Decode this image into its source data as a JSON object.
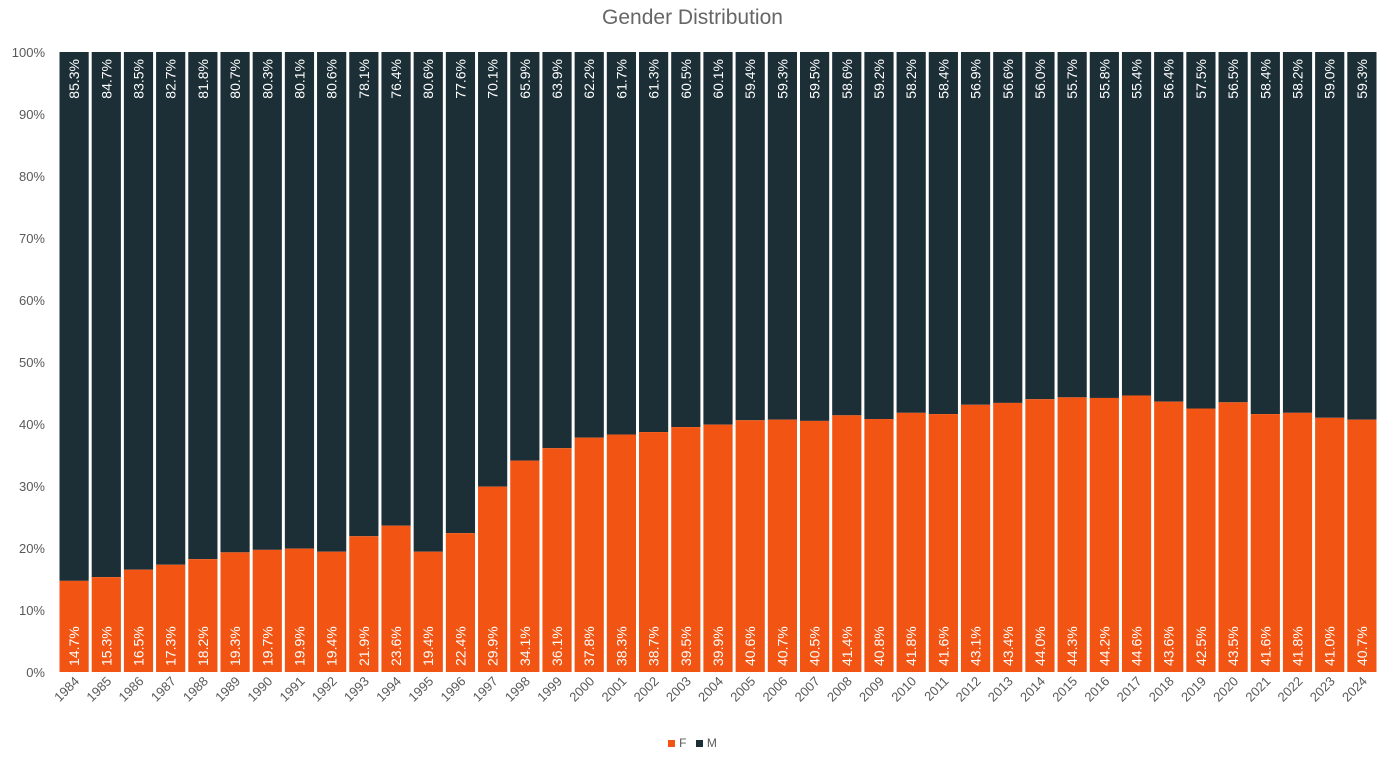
{
  "chart_data": {
    "type": "bar",
    "stacked": true,
    "title": "Gender Distribution",
    "xlabel": "",
    "ylabel": "",
    "ylim": [
      0,
      100
    ],
    "y_tick_labels": [
      "0%",
      "10%",
      "20%",
      "30%",
      "40%",
      "50%",
      "60%",
      "70%",
      "80%",
      "90%",
      "100%"
    ],
    "categories": [
      "1984",
      "1985",
      "1986",
      "1987",
      "1988",
      "1989",
      "1990",
      "1991",
      "1992",
      "1993",
      "1994",
      "1995",
      "1996",
      "1997",
      "1998",
      "1999",
      "2000",
      "2001",
      "2002",
      "2003",
      "2004",
      "2005",
      "2006",
      "2007",
      "2008",
      "2009",
      "2010",
      "2011",
      "2012",
      "2013",
      "2014",
      "2015",
      "2016",
      "2017",
      "2018",
      "2019",
      "2020",
      "2021",
      "2022",
      "2023",
      "2024"
    ],
    "series": [
      {
        "name": "F",
        "color": "#f25513",
        "values": [
          14.7,
          15.3,
          16.5,
          17.3,
          18.2,
          19.3,
          19.7,
          19.9,
          19.4,
          21.9,
          23.6,
          19.4,
          22.4,
          29.9,
          34.1,
          36.1,
          37.8,
          38.3,
          38.7,
          39.5,
          39.9,
          40.6,
          40.7,
          40.5,
          41.4,
          40.8,
          41.8,
          41.6,
          43.1,
          43.4,
          44.0,
          44.3,
          44.2,
          44.6,
          43.6,
          42.5,
          43.5,
          41.6,
          41.8,
          41.0,
          40.7
        ],
        "labels": [
          "14.7%",
          "15.3%",
          "16.5%",
          "17.3%",
          "18.2%",
          "19.3%",
          "19.7%",
          "19.9%",
          "19.4%",
          "21.9%",
          "23.6%",
          "19.4%",
          "22.4%",
          "29.9%",
          "34.1%",
          "36.1%",
          "37.8%",
          "38.3%",
          "38.7%",
          "39.5%",
          "39.9%",
          "40.6%",
          "40.7%",
          "40.5%",
          "41.4%",
          "40.8%",
          "41.8%",
          "41.6%",
          "43.1%",
          "43.4%",
          "44.0%",
          "44.3%",
          "44.2%",
          "44.6%",
          "43.6%",
          "42.5%",
          "43.5%",
          "41.6%",
          "41.8%",
          "41.0%",
          "40.7%"
        ]
      },
      {
        "name": "M",
        "color": "#1c2f37",
        "values": [
          85.3,
          84.7,
          83.5,
          82.7,
          81.8,
          80.7,
          80.3,
          80.1,
          80.6,
          78.1,
          76.4,
          80.6,
          77.6,
          70.1,
          65.9,
          63.9,
          62.2,
          61.7,
          61.3,
          60.5,
          60.1,
          59.4,
          59.3,
          59.5,
          58.6,
          59.2,
          58.2,
          58.4,
          56.9,
          56.6,
          56.0,
          55.7,
          55.8,
          55.4,
          56.4,
          57.5,
          56.5,
          58.4,
          58.2,
          59.0,
          59.3
        ],
        "labels": [
          "85.3%",
          "84.7%",
          "83.5%",
          "82.7%",
          "81.8%",
          "80.7%",
          "80.3%",
          "80.1%",
          "80.6%",
          "78.1%",
          "76.4%",
          "80.6%",
          "77.6%",
          "70.1%",
          "65.9%",
          "63.9%",
          "62.2%",
          "61.7%",
          "61.3%",
          "60.5%",
          "60.1%",
          "59.4%",
          "59.3%",
          "59.5%",
          "58.6%",
          "59.2%",
          "58.2%",
          "58.4%",
          "56.9%",
          "56.6%",
          "56.0%",
          "55.7%",
          "55.8%",
          "55.4%",
          "56.4%",
          "57.5%",
          "56.5%",
          "58.4%",
          "58.2%",
          "59.0%",
          "59.3%"
        ]
      }
    ],
    "grid": false,
    "legend_position": "bottom"
  }
}
